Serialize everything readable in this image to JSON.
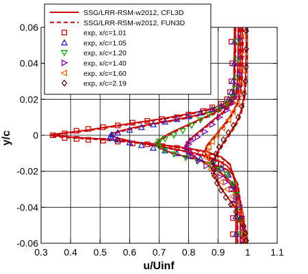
{
  "chart_data": {
    "type": "line",
    "title": "",
    "xlabel": "u/Uinf",
    "ylabel": "y/c",
    "xlim": [
      0.3,
      1.1
    ],
    "ylim": [
      -0.06,
      0.06
    ],
    "xticks": [
      "0.3",
      "0.4",
      "0.5",
      "0.6",
      "0.7",
      "0.8",
      "0.9",
      "1",
      "1.1"
    ],
    "yticks": [
      "0.06",
      "0.04",
      "0.02",
      "0",
      "-0.02",
      "-0.04",
      "-0.06"
    ],
    "grid": true,
    "legend_position": "top-left",
    "lines": [
      {
        "name": "SSG/LRR-RSM-w2012, CFL3D",
        "style": "solid",
        "color": "#cc0000",
        "profiles": [
          {
            "x": [
              0.955,
              0.955,
              0.954,
              0.953,
              0.95,
              0.94,
              0.92,
              0.88,
              0.83,
              0.77,
              0.7,
              0.62,
              0.54,
              0.46,
              0.39,
              0.34,
              0.33,
              0.4,
              0.5,
              0.6,
              0.7,
              0.79,
              0.86,
              0.91,
              0.94,
              0.955,
              0.96,
              0.96,
              0.96
            ],
            "y": [
              0.06,
              0.05,
              0.04,
              0.03,
              0.024,
              0.02,
              0.0175,
              0.015,
              0.013,
              0.011,
              0.009,
              0.007,
              0.005,
              0.003,
              0.0015,
              0.0005,
              0,
              -0.001,
              -0.002,
              -0.0035,
              -0.005,
              -0.007,
              -0.009,
              -0.012,
              -0.016,
              -0.025,
              -0.035,
              -0.045,
              -0.06
            ]
          },
          {
            "x": [
              0.958,
              0.958,
              0.957,
              0.955,
              0.952,
              0.945,
              0.93,
              0.9,
              0.86,
              0.81,
              0.75,
              0.68,
              0.62,
              0.57,
              0.54,
              0.535,
              0.56,
              0.61,
              0.68,
              0.75,
              0.81,
              0.86,
              0.9,
              0.93,
              0.95,
              0.962,
              0.965,
              0.965
            ],
            "y": [
              0.06,
              0.05,
              0.04,
              0.03,
              0.024,
              0.02,
              0.017,
              0.0145,
              0.0125,
              0.0105,
              0.0085,
              0.0065,
              0.0045,
              0.0025,
              0.001,
              0,
              -0.0015,
              -0.0035,
              -0.0055,
              -0.0075,
              -0.0095,
              -0.0115,
              -0.014,
              -0.017,
              -0.021,
              -0.03,
              -0.045,
              -0.06
            ]
          },
          {
            "x": [
              0.968,
              0.968,
              0.967,
              0.965,
              0.96,
              0.95,
              0.93,
              0.9,
              0.86,
              0.82,
              0.78,
              0.74,
              0.71,
              0.695,
              0.69,
              0.7,
              0.73,
              0.77,
              0.82,
              0.86,
              0.9,
              0.93,
              0.95,
              0.965,
              0.972,
              0.975,
              0.975
            ],
            "y": [
              0.06,
              0.05,
              0.04,
              0.03,
              0.024,
              0.02,
              0.0165,
              0.0135,
              0.0105,
              0.0075,
              0.0045,
              0.0015,
              -0.0015,
              -0.0035,
              -0.005,
              -0.007,
              -0.009,
              -0.011,
              -0.013,
              -0.015,
              -0.017,
              -0.019,
              -0.022,
              -0.027,
              -0.035,
              -0.045,
              -0.06
            ]
          },
          {
            "x": [
              0.975,
              0.975,
              0.974,
              0.972,
              0.966,
              0.955,
              0.935,
              0.91,
              0.88,
              0.85,
              0.82,
              0.8,
              0.79,
              0.793,
              0.81,
              0.84,
              0.87,
              0.9,
              0.925,
              0.945,
              0.96,
              0.972,
              0.98,
              0.983,
              0.983
            ],
            "y": [
              0.06,
              0.05,
              0.04,
              0.03,
              0.024,
              0.02,
              0.016,
              0.012,
              0.008,
              0.004,
              0,
              -0.003,
              -0.0055,
              -0.008,
              -0.011,
              -0.014,
              -0.017,
              -0.02,
              -0.023,
              -0.026,
              -0.03,
              -0.035,
              -0.042,
              -0.05,
              -0.06
            ]
          },
          {
            "x": [
              0.982,
              0.982,
              0.981,
              0.979,
              0.975,
              0.965,
              0.95,
              0.93,
              0.905,
              0.88,
              0.86,
              0.855,
              0.86,
              0.878,
              0.9,
              0.92,
              0.94,
              0.955,
              0.968,
              0.978,
              0.985,
              0.988,
              0.988
            ],
            "y": [
              0.06,
              0.05,
              0.04,
              0.03,
              0.024,
              0.018,
              0.013,
              0.008,
              0.003,
              -0.002,
              -0.006,
              -0.009,
              -0.012,
              -0.015,
              -0.019,
              -0.023,
              -0.027,
              -0.031,
              -0.035,
              -0.04,
              -0.046,
              -0.053,
              -0.06
            ]
          },
          {
            "x": [
              0.995,
              0.995,
              0.994,
              0.992,
              0.988,
              0.98,
              0.968,
              0.95,
              0.93,
              0.91,
              0.895,
              0.885,
              0.882,
              0.886,
              0.897,
              0.912,
              0.93,
              0.948,
              0.965,
              0.98,
              0.99,
              0.995,
              0.996
            ],
            "y": [
              0.06,
              0.05,
              0.04,
              0.03,
              0.022,
              0.015,
              0.009,
              0.004,
              -0.001,
              -0.006,
              -0.01,
              -0.014,
              -0.018,
              -0.022,
              -0.026,
              -0.03,
              -0.034,
              -0.038,
              -0.042,
              -0.046,
              -0.05,
              -0.055,
              -0.06
            ]
          }
        ]
      },
      {
        "name": "SSG/LRR-RSM-w2012, FUN3D",
        "style": "dashed",
        "color": "#cc0000",
        "offsets": [
          [
            0.0,
            -0.0005
          ],
          [
            0.002,
            -0.0005
          ],
          [
            0.003,
            -0.0005
          ],
          [
            0.003,
            -0.0005
          ],
          [
            0.003,
            -0.0005
          ],
          [
            0.003,
            -0.0005
          ]
        ]
      }
    ],
    "series": [
      {
        "name": "exp, x/c=1.01",
        "marker": "square",
        "color": "#cc0000",
        "x": [
          0.945,
          0.948,
          0.945,
          0.94,
          0.93,
          0.91,
          0.88,
          0.85,
          0.8,
          0.76,
          0.71,
          0.66,
          0.61,
          0.56,
          0.51,
          0.46,
          0.42,
          0.38,
          0.34,
          0.38,
          0.42,
          0.46,
          0.51,
          0.56,
          0.61,
          0.66,
          0.71,
          0.76,
          0.8,
          0.84,
          0.88,
          0.91,
          0.93,
          0.945,
          0.95,
          0.95,
          0.95
        ],
        "y": [
          0.052,
          0.04,
          0.03,
          0.024,
          0.02,
          0.0175,
          0.0155,
          0.0135,
          0.0115,
          0.01,
          0.009,
          0.008,
          0.007,
          0.0055,
          0.0045,
          0.0035,
          0.0025,
          0.001,
          0,
          -0.0015,
          -0.002,
          -0.0025,
          -0.003,
          -0.0035,
          -0.0045,
          -0.005,
          -0.006,
          -0.007,
          -0.0085,
          -0.01,
          -0.012,
          -0.016,
          -0.022,
          -0.03,
          -0.038,
          -0.046,
          -0.055
        ]
      },
      {
        "name": "exp, x/c=1.05",
        "marker": "triangle-up",
        "color": "#2222cc",
        "x": [
          0.955,
          0.955,
          0.95,
          0.945,
          0.935,
          0.91,
          0.88,
          0.84,
          0.8,
          0.76,
          0.72,
          0.68,
          0.64,
          0.6,
          0.56,
          0.54,
          0.535,
          0.54,
          0.56,
          0.6,
          0.64,
          0.68,
          0.72,
          0.76,
          0.8,
          0.84,
          0.88,
          0.91,
          0.935,
          0.95,
          0.958,
          0.96,
          0.96
        ],
        "y": [
          0.052,
          0.04,
          0.03,
          0.024,
          0.02,
          0.0165,
          0.0145,
          0.0125,
          0.0105,
          0.009,
          0.0075,
          0.006,
          0.0045,
          0.003,
          0.0015,
          0.0005,
          -0.0005,
          -0.0015,
          -0.0025,
          -0.004,
          -0.0055,
          -0.007,
          -0.0085,
          -0.01,
          -0.0115,
          -0.013,
          -0.015,
          -0.018,
          -0.022,
          -0.028,
          -0.036,
          -0.045,
          -0.055
        ]
      },
      {
        "name": "exp, x/c=1.20",
        "marker": "triangle-down",
        "color": "#00aa00",
        "x": [
          0.965,
          0.965,
          0.962,
          0.958,
          0.95,
          0.93,
          0.9,
          0.87,
          0.84,
          0.81,
          0.78,
          0.75,
          0.72,
          0.7,
          0.695,
          0.7,
          0.72,
          0.75,
          0.79,
          0.83,
          0.87,
          0.9,
          0.93,
          0.95,
          0.962,
          0.97,
          0.972,
          0.975
        ],
        "y": [
          0.052,
          0.042,
          0.032,
          0.026,
          0.021,
          0.0175,
          0.0145,
          0.0115,
          0.0085,
          0.0055,
          0.0025,
          0,
          -0.002,
          -0.0035,
          -0.005,
          -0.0065,
          -0.0085,
          -0.0105,
          -0.0125,
          -0.0145,
          -0.0165,
          -0.019,
          -0.022,
          -0.027,
          -0.033,
          -0.04,
          -0.047,
          -0.055
        ]
      },
      {
        "name": "exp, x/c=1.40",
        "marker": "triangle-right",
        "color": "#7700aa",
        "x": [
          0.975,
          0.975,
          0.973,
          0.97,
          0.963,
          0.95,
          0.93,
          0.905,
          0.88,
          0.855,
          0.83,
          0.81,
          0.8,
          0.795,
          0.8,
          0.815,
          0.835,
          0.86,
          0.885,
          0.905,
          0.925,
          0.945,
          0.96,
          0.972,
          0.98,
          0.983,
          0.983
        ],
        "y": [
          0.054,
          0.044,
          0.034,
          0.027,
          0.022,
          0.018,
          0.014,
          0.01,
          0.006,
          0.002,
          -0.001,
          -0.003,
          -0.005,
          -0.007,
          -0.009,
          -0.0115,
          -0.014,
          -0.017,
          -0.02,
          -0.023,
          -0.026,
          -0.03,
          -0.034,
          -0.039,
          -0.045,
          -0.052,
          -0.058
        ]
      },
      {
        "name": "exp, x/c=1.60",
        "marker": "triangle-left",
        "color": "#ee6600",
        "x": [
          0.985,
          0.985,
          0.983,
          0.98,
          0.975,
          0.965,
          0.95,
          0.935,
          0.915,
          0.895,
          0.88,
          0.868,
          0.862,
          0.86,
          0.865,
          0.875,
          0.89,
          0.91,
          0.93,
          0.948,
          0.963,
          0.975,
          0.982,
          0.985,
          0.987
        ],
        "y": [
          0.055,
          0.045,
          0.036,
          0.029,
          0.023,
          0.0175,
          0.013,
          0.0085,
          0.004,
          0,
          -0.0035,
          -0.0065,
          -0.0095,
          -0.0125,
          -0.0155,
          -0.019,
          -0.0225,
          -0.026,
          -0.03,
          -0.034,
          -0.038,
          -0.043,
          -0.048,
          -0.053,
          -0.058
        ]
      },
      {
        "name": "exp, x/c=2.19",
        "marker": "diamond",
        "color": "#551111",
        "x": [
          0.995,
          0.995,
          0.994,
          0.992,
          0.988,
          0.98,
          0.968,
          0.952,
          0.935,
          0.918,
          0.903,
          0.892,
          0.886,
          0.884,
          0.887,
          0.896,
          0.91,
          0.926,
          0.943,
          0.96,
          0.975,
          0.986,
          0.992,
          0.995
        ],
        "y": [
          0.058,
          0.048,
          0.038,
          0.03,
          0.023,
          0.016,
          0.01,
          0.0055,
          0.0015,
          -0.0025,
          -0.0065,
          -0.0105,
          -0.0145,
          -0.0185,
          -0.0225,
          -0.0265,
          -0.0305,
          -0.0345,
          -0.0385,
          -0.0425,
          -0.0465,
          -0.0505,
          -0.0545,
          -0.0585
        ]
      }
    ],
    "legend": {
      "entries": [
        "SSG/LRR-RSM-w2012, CFL3D",
        "SSG/LRR-RSM-w2012, FUN3D",
        "exp, x/c=1.01",
        "exp, x/c=1.05",
        "exp, x/c=1.20",
        "exp, x/c=1.40",
        "exp, x/c=1.60",
        "exp, x/c=2.19"
      ]
    }
  }
}
